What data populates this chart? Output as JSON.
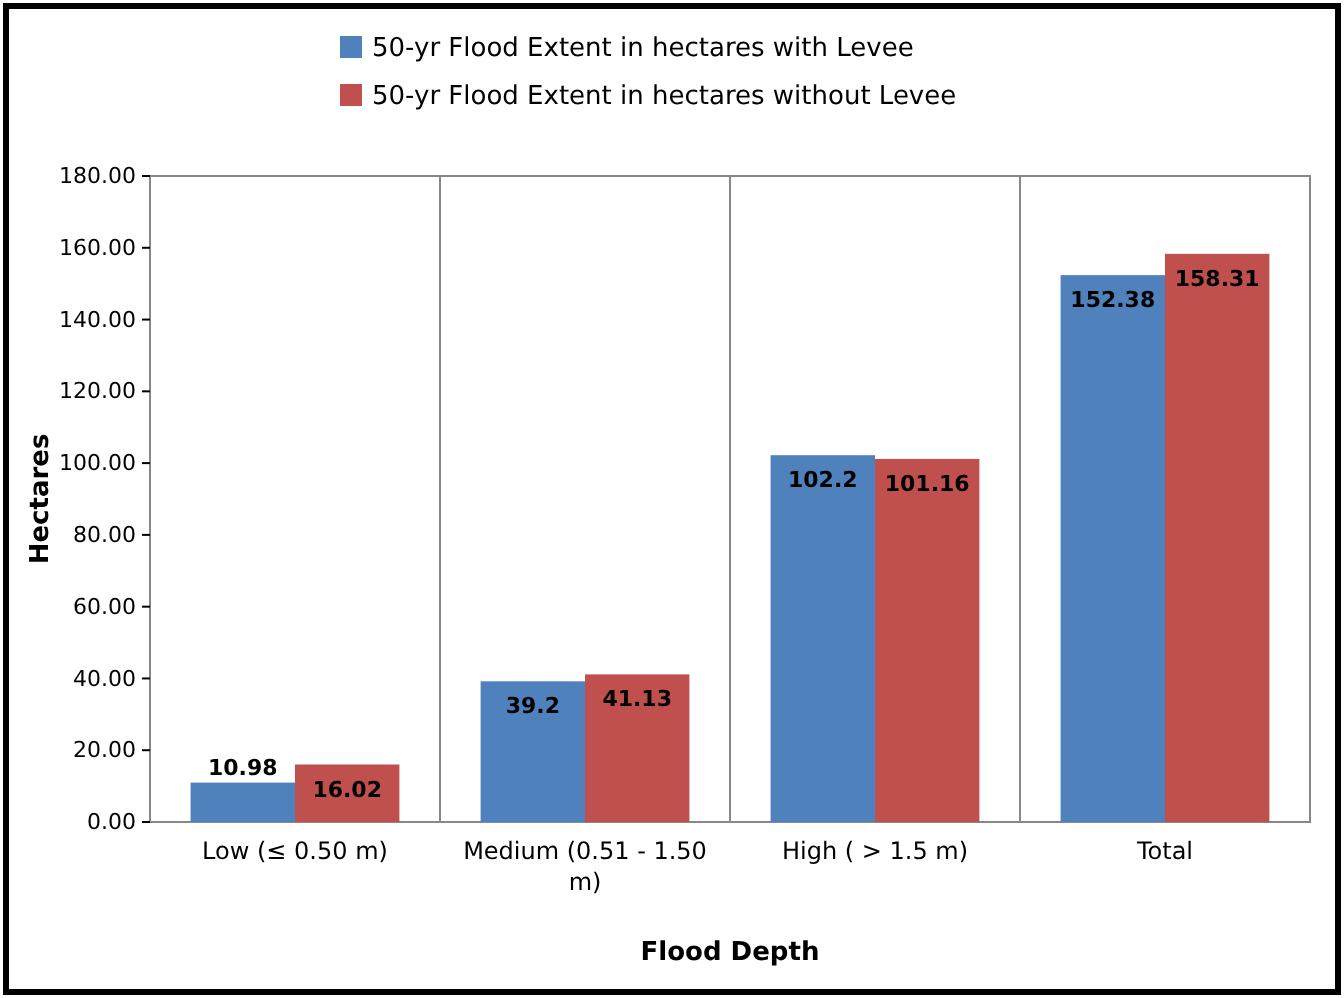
{
  "chart_data": {
    "type": "bar",
    "xlabel": "Flood Depth",
    "ylabel": "Hectares",
    "categories": [
      "Low (≤ 0.50 m)",
      "Medium (0.51 - 1.50 m)",
      "High ( > 1.5 m)",
      "Total"
    ],
    "series": [
      {
        "name": "50-yr Flood Extent in hectares with Levee",
        "color": "#4f81bd",
        "values": [
          10.98,
          39.2,
          102.2,
          152.38
        ]
      },
      {
        "name": "50-yr Flood Extent in hectares without Levee",
        "color": "#c0504d",
        "values": [
          16.02,
          41.13,
          101.16,
          158.31
        ]
      }
    ],
    "ylim": [
      0,
      180
    ],
    "yticks": [
      {
        "value": 0,
        "label": "0.00"
      },
      {
        "value": 20,
        "label": "20.00"
      },
      {
        "value": 40,
        "label": "40.00"
      },
      {
        "value": 60,
        "label": "60.00"
      },
      {
        "value": 80,
        "label": "80.00"
      },
      {
        "value": 100,
        "label": "100.00"
      },
      {
        "value": 120,
        "label": "120.00"
      },
      {
        "value": 140,
        "label": "140.00"
      },
      {
        "value": 160,
        "label": "160.00"
      },
      {
        "value": 180,
        "label": "180.00"
      }
    ],
    "grid": "x",
    "legend": "top",
    "data_labels": true
  }
}
